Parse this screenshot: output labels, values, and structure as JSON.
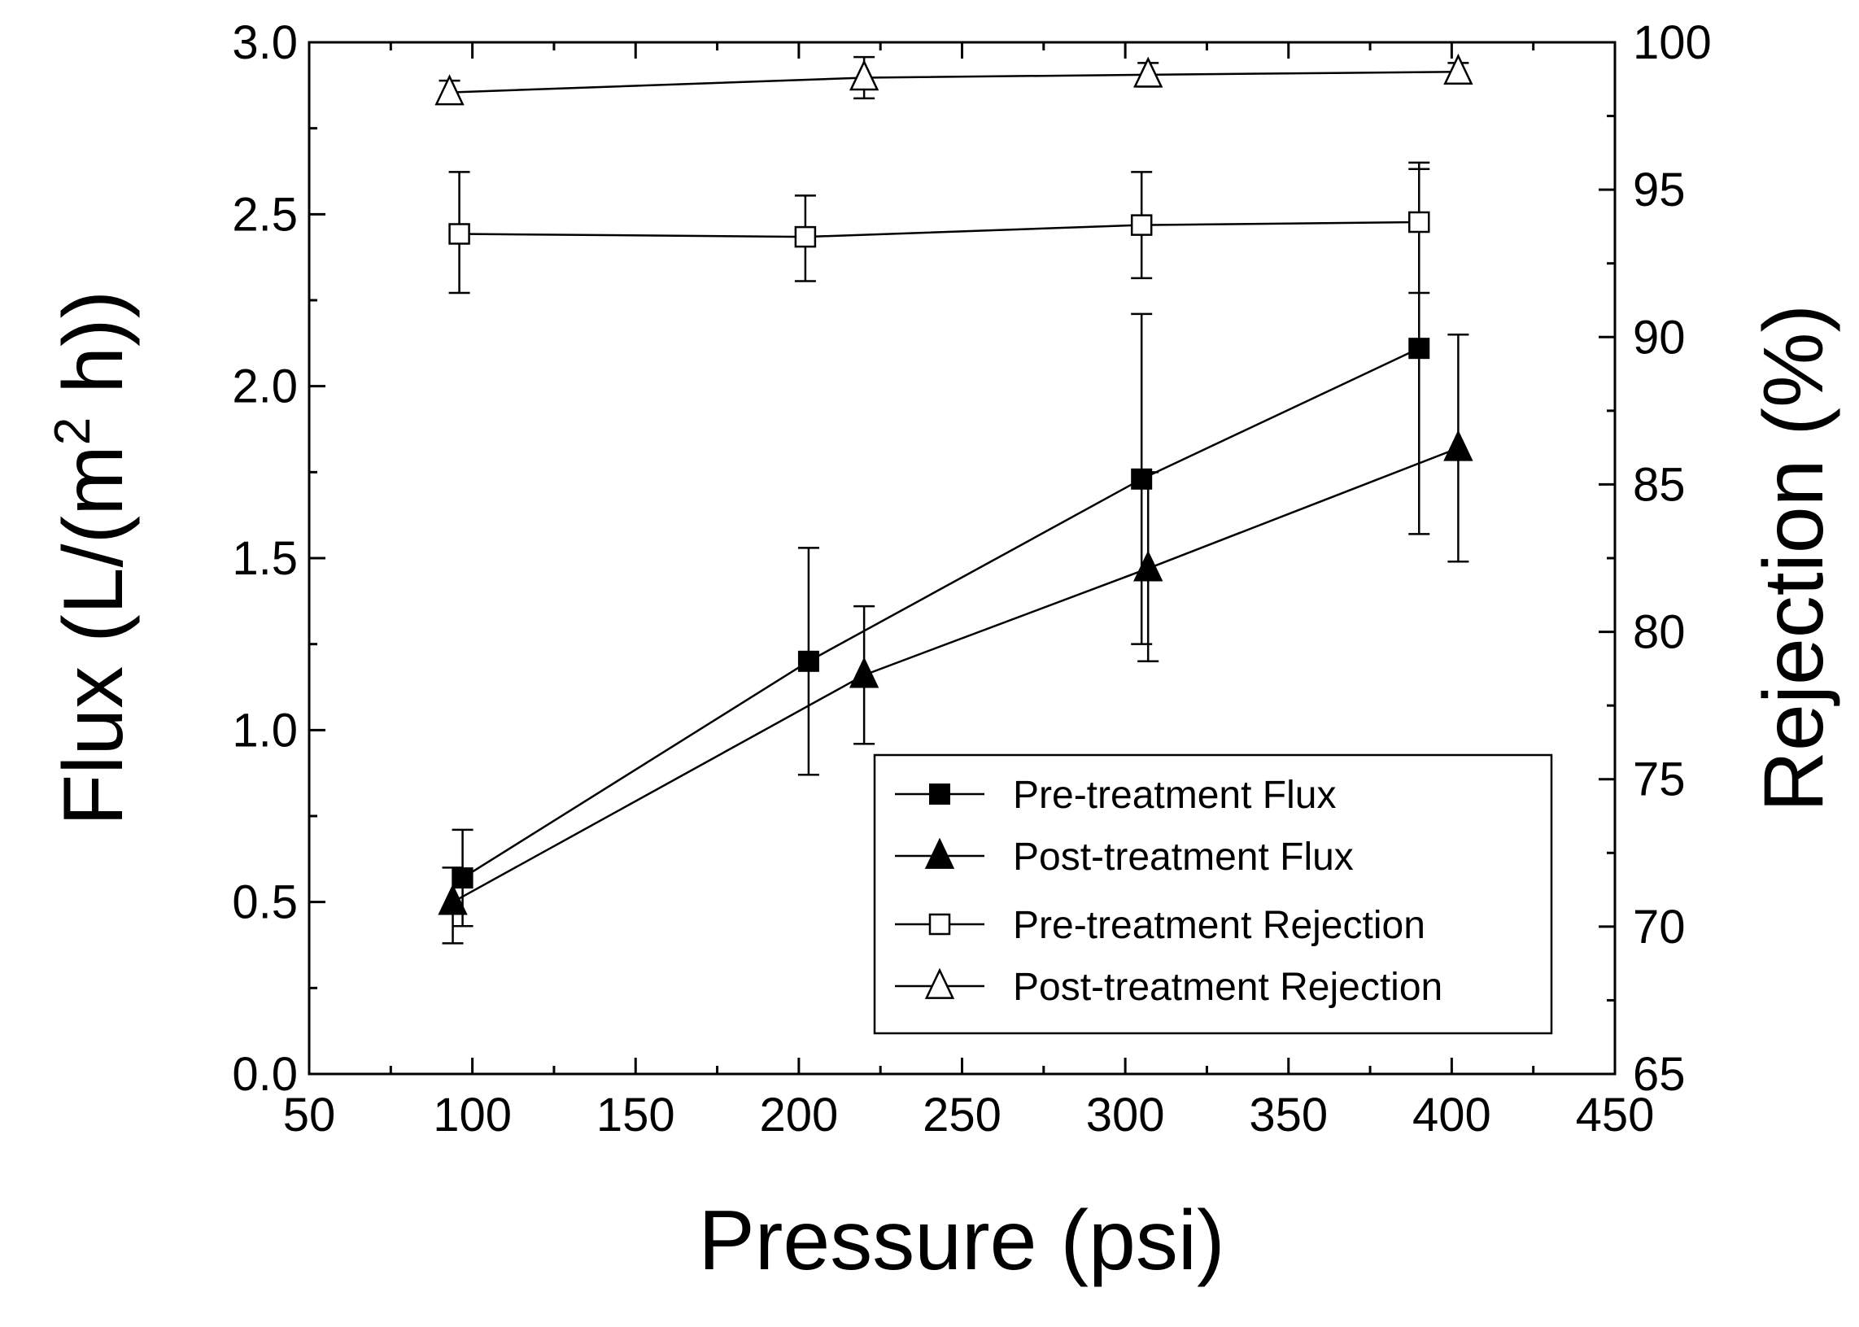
{
  "chart_data": {
    "type": "line",
    "xlabel": "Pressure (psi)",
    "ylabel": "Flux (L/(m",
    "ylabel_sup": "2",
    "ylabel_end": " h))",
    "y2label": "Rejection (%)",
    "xlim": [
      50,
      450
    ],
    "ylim": [
      0.0,
      3.0
    ],
    "y2lim": [
      65,
      100
    ],
    "x_ticks": [
      "50",
      "100",
      "150",
      "200",
      "250",
      "300",
      "350",
      "400",
      "450"
    ],
    "y_ticks": [
      "0.0",
      "0.5",
      "1.0",
      "1.5",
      "2.0",
      "2.5",
      "3.0"
    ],
    "y2_ticks": [
      "65",
      "70",
      "75",
      "80",
      "85",
      "90",
      "95",
      "100"
    ],
    "series": [
      {
        "name": "Pre-treatment Flux",
        "axis": "left",
        "marker": "square-filled",
        "x": [
          97,
          203,
          305,
          390
        ],
        "values": [
          0.57,
          1.2,
          1.73,
          2.11
        ],
        "err_low": [
          0.43,
          0.87,
          1.25,
          1.57
        ],
        "err_high": [
          0.71,
          1.53,
          2.21,
          2.65
        ]
      },
      {
        "name": "Post-treatment Flux",
        "axis": "left",
        "marker": "triangle-filled",
        "x": [
          94,
          220,
          307,
          402
        ],
        "values": [
          0.5,
          1.16,
          1.47,
          1.82
        ],
        "err_low": [
          0.38,
          0.96,
          1.2,
          1.49
        ],
        "err_high": [
          0.6,
          1.36,
          1.75,
          2.15
        ]
      },
      {
        "name": "Pre-treatment Rejection",
        "axis": "right",
        "marker": "square-open",
        "x": [
          96,
          202,
          305,
          390
        ],
        "values": [
          93.5,
          93.4,
          93.8,
          93.9
        ],
        "err_low": [
          91.5,
          91.9,
          92.0,
          91.5
        ],
        "err_high": [
          95.6,
          94.8,
          95.6,
          95.7
        ]
      },
      {
        "name": "Post-treatment Rejection",
        "axis": "right",
        "marker": "triangle-open",
        "x": [
          93,
          220,
          307,
          402
        ],
        "values": [
          98.3,
          98.8,
          98.9,
          99.0
        ],
        "err_low": [
          98.0,
          98.1,
          98.5,
          98.6
        ],
        "err_high": [
          98.7,
          99.5,
          99.3,
          99.3
        ]
      }
    ],
    "legend": {
      "position": "bottom-right",
      "entries": [
        "Pre-treatment Flux",
        "Post-treatment Flux",
        "Pre-treatment Rejection",
        "Post-treatment Rejection"
      ]
    },
    "grid": false
  }
}
